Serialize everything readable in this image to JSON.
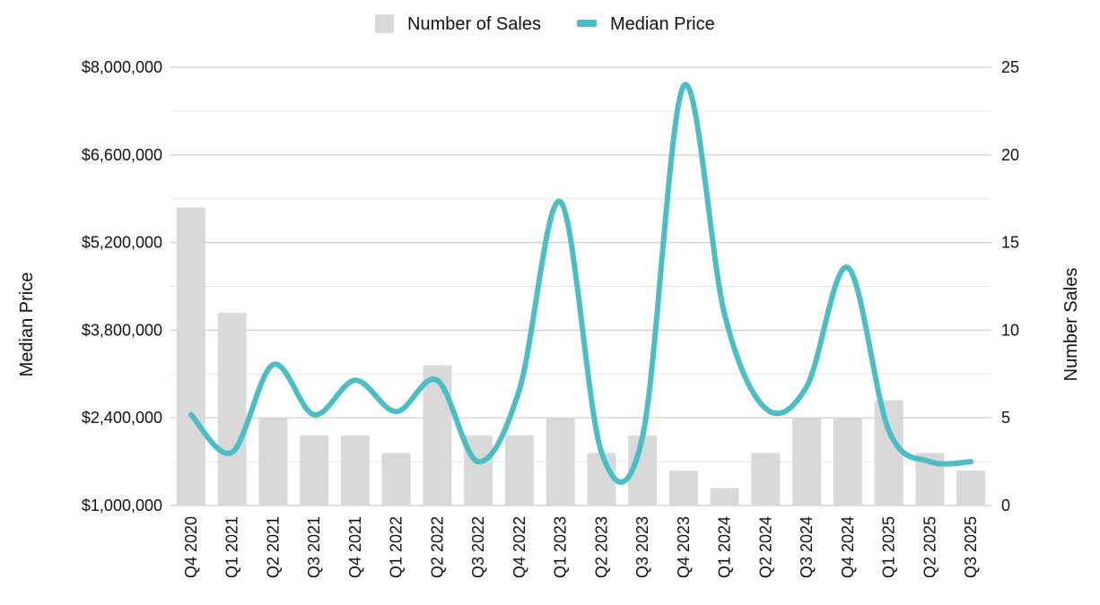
{
  "chart_data": {
    "type": "bar-line-combo",
    "title": "",
    "categories": [
      "Q4 2020",
      "Q1 2021",
      "Q2 2021",
      "Q3 2021",
      "Q4 2021",
      "Q1 2022",
      "Q2 2022",
      "Q3 2022",
      "Q4 2022",
      "Q1 2023",
      "Q2 2023",
      "Q3 2023",
      "Q4 2023",
      "Q1 2024",
      "Q2 2024",
      "Q3 2024",
      "Q4 2024",
      "Q1 2025",
      "Q2 2025",
      "Q3 2025"
    ],
    "series": [
      {
        "name": "Number of Sales",
        "type": "bar",
        "axis": "right",
        "color": "#d9d9d9",
        "values": [
          17,
          11,
          5,
          4,
          4,
          3,
          8,
          4,
          4,
          5,
          3,
          4,
          2,
          1,
          3,
          5,
          5,
          6,
          3,
          2
        ]
      },
      {
        "name": "Median Price",
        "type": "line",
        "axis": "left",
        "color": "#4abdc5",
        "values": [
          2450000,
          1850000,
          3250000,
          2450000,
          3000000,
          2500000,
          3000000,
          1700000,
          2850000,
          5850000,
          1850000,
          2100000,
          7700000,
          4050000,
          2550000,
          2900000,
          4800000,
          2200000,
          1700000,
          1700000
        ]
      }
    ],
    "y_left": {
      "label": "Median Price",
      "min": 1000000,
      "max": 8000000,
      "ticks": [
        1000000,
        2400000,
        3800000,
        5200000,
        6600000,
        8000000
      ],
      "tick_labels": [
        "$1,000,000",
        "$2,400,000",
        "$3,800,000",
        "$5,200,000",
        "$6,600,000",
        "$8,000,000"
      ]
    },
    "y_right": {
      "label": "Number Sales",
      "min": 0,
      "max": 25,
      "ticks": [
        0,
        5,
        10,
        15,
        20,
        25
      ],
      "tick_labels": [
        "0",
        "5",
        "10",
        "15",
        "20",
        "25"
      ]
    },
    "legend": {
      "position": "top-center",
      "items": [
        {
          "label": "Number of Sales",
          "color": "#d9d9d9",
          "shape": "square"
        },
        {
          "label": "Median Price",
          "color": "#4abdc5",
          "shape": "line"
        }
      ]
    },
    "grid": true
  }
}
